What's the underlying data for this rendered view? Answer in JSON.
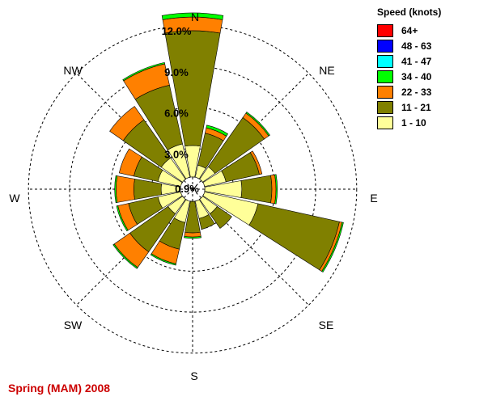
{
  "chart_data": {
    "type": "wind-rose",
    "title": "Spring (MAM) 2008",
    "legend_title": "Speed (knots)",
    "directions": [
      "N",
      "NE",
      "E",
      "SE",
      "S",
      "SW",
      "W",
      "NW"
    ],
    "center_label": "0.9%",
    "ring_labels": [
      "3.0%",
      "6.0%",
      "9.0%",
      "12.0%"
    ],
    "ring_values": [
      3,
      6,
      9,
      12
    ],
    "bins": [
      {
        "label": "64+",
        "color": "#ff0000"
      },
      {
        "label": "48 - 63",
        "color": "#0000ff"
      },
      {
        "label": "41 - 47",
        "color": "#00ffff"
      },
      {
        "label": "34 - 40",
        "color": "#00ff00"
      },
      {
        "label": "22 - 33",
        "color": "#ff8000"
      },
      {
        "label": "11 - 21",
        "color": "#808000"
      },
      {
        "label": "1 - 10",
        "color": "#ffff99"
      }
    ],
    "calm_percent": 0.9,
    "sectors": [
      {
        "angle": 0,
        "cumulative": [
          3.2,
          11.6,
          12.6,
          12.9
        ]
      },
      {
        "angle": 22.5,
        "cumulative": [
          1.8,
          4.2,
          4.6,
          4.8
        ]
      },
      {
        "angle": 45,
        "cumulative": [
          2.0,
          6.4,
          6.8,
          6.9
        ]
      },
      {
        "angle": 67.5,
        "cumulative": [
          2.5,
          5.0,
          5.2
        ]
      },
      {
        "angle": 90,
        "cumulative": [
          3.6,
          5.8,
          6.1,
          6.2
        ]
      },
      {
        "angle": 112.5,
        "cumulative": [
          4.9,
          11.0,
          11.2,
          11.3
        ]
      },
      {
        "angle": 135,
        "cumulative": [
          2.2,
          3.5
        ]
      },
      {
        "angle": 157.5,
        "cumulative": [
          2.2,
          3.0
        ]
      },
      {
        "angle": 180,
        "cumulative": [
          0.9,
          3.2,
          3.5,
          3.6
        ]
      },
      {
        "angle": 202.5,
        "cumulative": [
          2.5,
          4.5,
          5.6,
          5.7
        ]
      },
      {
        "angle": 225,
        "cumulative": [
          2.2,
          5.6,
          7.0,
          7.1
        ]
      },
      {
        "angle": 247.5,
        "cumulative": [
          2.6,
          4.8,
          5.6,
          5.7
        ]
      },
      {
        "angle": 270,
        "cumulative": [
          2.3,
          4.3,
          5.6,
          5.7
        ]
      },
      {
        "angle": 292.5,
        "cumulative": [
          2.6,
          4.4,
          5.5
        ]
      },
      {
        "angle": 315,
        "cumulative": [
          2.8,
          6.2,
          7.4
        ]
      },
      {
        "angle": 337.5,
        "cumulative": [
          3.4,
          7.8,
          9.4,
          9.5
        ]
      }
    ]
  }
}
